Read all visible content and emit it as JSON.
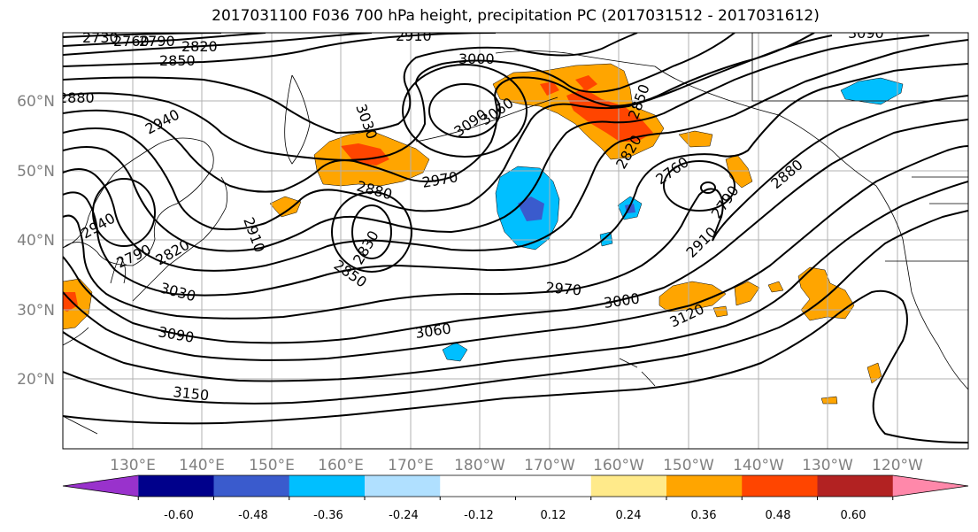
{
  "title": "2017031100 F036 700 hPa height, precipitation PC (2017031512 - 2017031612)",
  "lat_labels": [
    "60°N",
    "50°N",
    "40°N",
    "30°N",
    "20°N"
  ],
  "lon_labels": [
    "130°E",
    "140°E",
    "150°E",
    "160°E",
    "170°E",
    "180°W",
    "170°W",
    "160°W",
    "150°W",
    "140°W",
    "130°W",
    "120°W"
  ],
  "contour_labels": [
    "2730",
    "2760",
    "2790",
    "2820",
    "2850",
    "2880",
    "2910",
    "2940",
    "2970",
    "3000",
    "3030",
    "3060",
    "3090",
    "3120",
    "3150",
    "2790",
    "2820",
    "2850",
    "2880",
    "2910",
    "2940",
    "2970",
    "3000",
    "3030",
    "3060",
    "3090",
    "3150",
    "2760",
    "2790",
    "2880",
    "2820",
    "2830",
    "2880",
    "2910",
    "2940",
    "3120",
    "2970",
    "3000",
    "3060",
    "3090",
    "2850"
  ],
  "colorbar": {
    "colors": [
      "#9932cc",
      "#00008b",
      "#3a5bcd",
      "#00bfff",
      "#b0e0ff",
      "#ffffff",
      "#ffffff",
      "#ffea8a",
      "#ffa500",
      "#ff4500",
      "#b22222",
      "#ff88aa"
    ],
    "tick_labels": [
      "-0.60",
      "-0.48",
      "-0.36",
      "-0.24",
      "-0.12",
      "0.12",
      "0.24",
      "0.36",
      "0.48",
      "0.60"
    ]
  }
}
